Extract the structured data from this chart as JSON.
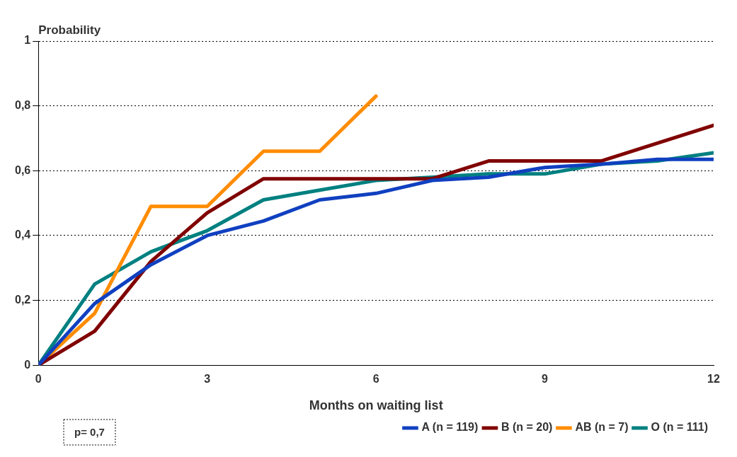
{
  "chart_data": {
    "type": "line",
    "xlabel": "Months on waiting list",
    "ylabel": "Probability",
    "xlim": [
      0,
      12
    ],
    "xticks": [
      0,
      3,
      6,
      9,
      12
    ],
    "ylim": [
      0,
      1
    ],
    "yticks": [
      0,
      {
        "value": 0.2,
        "label": "0,2"
      },
      {
        "value": 0.4,
        "label": "0,4"
      },
      {
        "value": 0.6,
        "label": "0,6"
      },
      {
        "value": 0.8,
        "label": "0,8"
      },
      1
    ],
    "grid": "y",
    "legend": "bottom right",
    "marker": "none",
    "line_style": "solid",
    "annotations": [
      "p= 0,7"
    ],
    "series": [
      {
        "name": "A (n = 119)",
        "color": "#1040c0",
        "x": [
          0,
          1,
          2,
          3,
          4,
          5,
          6,
          7,
          8,
          9,
          10,
          11,
          12
        ],
        "values": [
          0,
          0.19,
          0.31,
          0.4,
          0.445,
          0.51,
          0.53,
          0.57,
          0.58,
          0.61,
          0.62,
          0.635,
          0.635
        ]
      },
      {
        "name": "B (n = 20)",
        "color": "#800000",
        "x": [
          0,
          1,
          2,
          3,
          4,
          5,
          6,
          7,
          8,
          9,
          10,
          11,
          12
        ],
        "values": [
          0,
          0.105,
          0.32,
          0.47,
          0.575,
          0.575,
          0.575,
          0.575,
          0.63,
          0.63,
          0.63,
          0.685,
          0.74
        ]
      },
      {
        "name": "AB (n = 7)",
        "color": "#ff8c00",
        "x": [
          0,
          1,
          2,
          3,
          4,
          5,
          6
        ],
        "values": [
          0,
          0.16,
          0.49,
          0.49,
          0.66,
          0.66,
          0.83
        ]
      },
      {
        "name": "O (n = 111)",
        "color": "#008080",
        "x": [
          0,
          1,
          2,
          3,
          4,
          5,
          6,
          7,
          8,
          9,
          10,
          11,
          12
        ],
        "values": [
          0,
          0.25,
          0.35,
          0.415,
          0.51,
          0.54,
          0.57,
          0.58,
          0.59,
          0.59,
          0.62,
          0.63,
          0.655
        ]
      }
    ]
  }
}
